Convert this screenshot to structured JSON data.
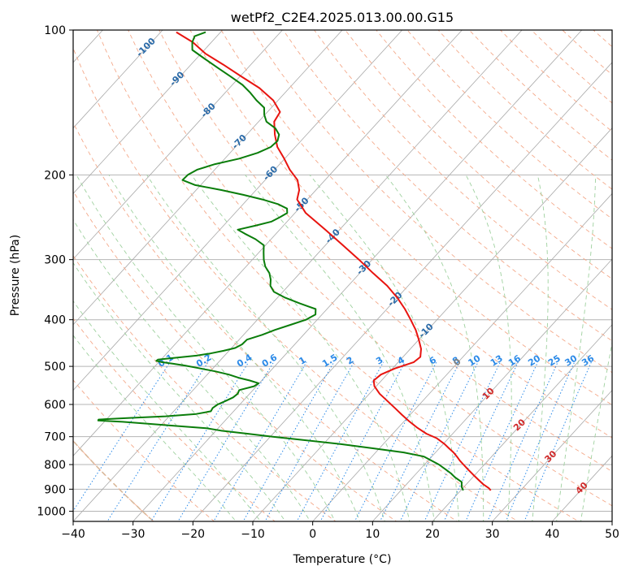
{
  "chart_data": {
    "type": "line",
    "title": "wetPf2_C2E4.2025.013.00.00.G15",
    "xlabel": "Temperature (°C)",
    "ylabel": "Pressure (hPa)",
    "xlim": [
      -40,
      50
    ],
    "ylim": [
      1050,
      100
    ],
    "y_scale": "log",
    "grid": true,
    "x_ticks": [
      "−40",
      "−30",
      "−20",
      "−10",
      "0",
      "10",
      "20",
      "30",
      "40",
      "50"
    ],
    "y_ticks": [
      "100",
      "200",
      "300",
      "400",
      "500",
      "600",
      "700",
      "800",
      "900",
      "1000"
    ],
    "series": [
      {
        "color": "#e8140f",
        "p": [
          905,
          895,
          880,
          860,
          840,
          820,
          800,
          785,
          770,
          755,
          740,
          725,
          705,
          690,
          670,
          650,
          630,
          610,
          590,
          570,
          550,
          535,
          520,
          505,
          490,
          478,
          460,
          440,
          420,
          400,
          380,
          360,
          340,
          320,
          300,
          280,
          260,
          240,
          225,
          215,
          205,
          195,
          185,
          175,
          165,
          155,
          148,
          140,
          132,
          125,
          118,
          112,
          106,
          101
        ],
        "t": [
          25.0,
          24.3,
          22.9,
          21.3,
          19.7,
          18.1,
          16.5,
          15.3,
          14.2,
          13.0,
          11.6,
          10.2,
          8.0,
          5.6,
          3.1,
          0.8,
          -1.4,
          -3.6,
          -5.9,
          -8.3,
          -10.3,
          -11.3,
          -11.0,
          -9.6,
          -7.4,
          -7.1,
          -8.2,
          -10.0,
          -12.0,
          -14.4,
          -17.0,
          -20.0,
          -23.5,
          -27.8,
          -32.2,
          -37.1,
          -42.4,
          -48.2,
          -51.7,
          -52.8,
          -54.6,
          -57.5,
          -60.1,
          -63.0,
          -65.3,
          -67.4,
          -67.9,
          -70.8,
          -75.0,
          -79.7,
          -84.6,
          -89.2,
          -93.1,
          -97.4
        ]
      },
      {
        "color": "#0a7d0a",
        "p": [
          905,
          890,
          870,
          850,
          835,
          820,
          800,
          785,
          770,
          755,
          740,
          725,
          710,
          700,
          690,
          680,
          672,
          665,
          658,
          652,
          648,
          645,
          640,
          635,
          628,
          620,
          610,
          600,
          590,
          580,
          570,
          560,
          550,
          542,
          535,
          528,
          520,
          512,
          504,
          498,
          494,
          490,
          487,
          484,
          480,
          475,
          470,
          464,
          458,
          450,
          440,
          430,
          420,
          410,
          400,
          390,
          380,
          370,
          360,
          350,
          340,
          330,
          320,
          310,
          300,
          290,
          280,
          272,
          265,
          260,
          255,
          250,
          245,
          240,
          235,
          230,
          225,
          220,
          215,
          210,
          205,
          200,
          195,
          190,
          185,
          180,
          175,
          170,
          165,
          160,
          155,
          150,
          145,
          140,
          135,
          130,
          125,
          120,
          115,
          110,
          106,
          103,
          101
        ],
        "t": [
          20.4,
          19.6,
          18.9,
          17.0,
          15.8,
          14.4,
          12.4,
          10.6,
          8.7,
          4.7,
          -1.1,
          -7.2,
          -14.7,
          -19.6,
          -24.3,
          -29.2,
          -32.0,
          -37.3,
          -42.4,
          -46.9,
          -51.2,
          -51.3,
          -46.4,
          -40.6,
          -35.8,
          -33.8,
          -34.0,
          -33.7,
          -32.9,
          -32.2,
          -32.0,
          -32.3,
          -30.4,
          -30.1,
          -32.0,
          -34.3,
          -36.4,
          -39.2,
          -42.5,
          -45.1,
          -47.2,
          -49.5,
          -50.6,
          -50.5,
          -48.0,
          -44.7,
          -42.7,
          -40.9,
          -39.4,
          -38.8,
          -38.7,
          -36.9,
          -35.5,
          -33.7,
          -31.9,
          -31.1,
          -31.9,
          -35.4,
          -38.7,
          -41.5,
          -43.0,
          -43.9,
          -45.1,
          -46.8,
          -48.1,
          -49.2,
          -50.3,
          -52.6,
          -55.2,
          -57.0,
          -54.7,
          -52.6,
          -51.9,
          -51.3,
          -52.0,
          -54.2,
          -57.5,
          -61.4,
          -65.8,
          -70.9,
          -73.8,
          -73.7,
          -72.9,
          -70.8,
          -67.6,
          -65.4,
          -64.1,
          -63.9,
          -64.6,
          -66.2,
          -68.7,
          -70.1,
          -71.2,
          -73.6,
          -75.8,
          -78.3,
          -81.5,
          -84.9,
          -88.4,
          -92.0,
          -93.2,
          -93.7,
          -92.5
        ]
      }
    ],
    "mixing_ratio_labels": [
      "0.1",
      "0.2",
      "0.4",
      "0.6",
      "1",
      "1.5",
      "2",
      "3",
      "4",
      "6",
      "8",
      "10",
      "13",
      "16",
      "20",
      "25",
      "30",
      "36"
    ],
    "dry_adiabat_labels": [
      "-100",
      "-90",
      "-80",
      "-70",
      "-60",
      "-50",
      "-40",
      "-30",
      "-20",
      "-10",
      "0",
      "10",
      "20",
      "30",
      "40"
    ],
    "colors": {
      "temperature": "#e8140f",
      "dewpoint": "#0a7d0a",
      "isotherm": "#a8a8a8",
      "isobar": "#b4b4b4",
      "dry_adiabat": "#f4a98a",
      "moist_adiabat": "#9fd19f",
      "mixing_ratio": "#2b8ae8",
      "frame": "#000000",
      "label_negative": "#2a6aa8",
      "label_positive": "#d02a2a",
      "label_zero": "#808080",
      "outer_adiabat": "#d9b89a"
    }
  }
}
